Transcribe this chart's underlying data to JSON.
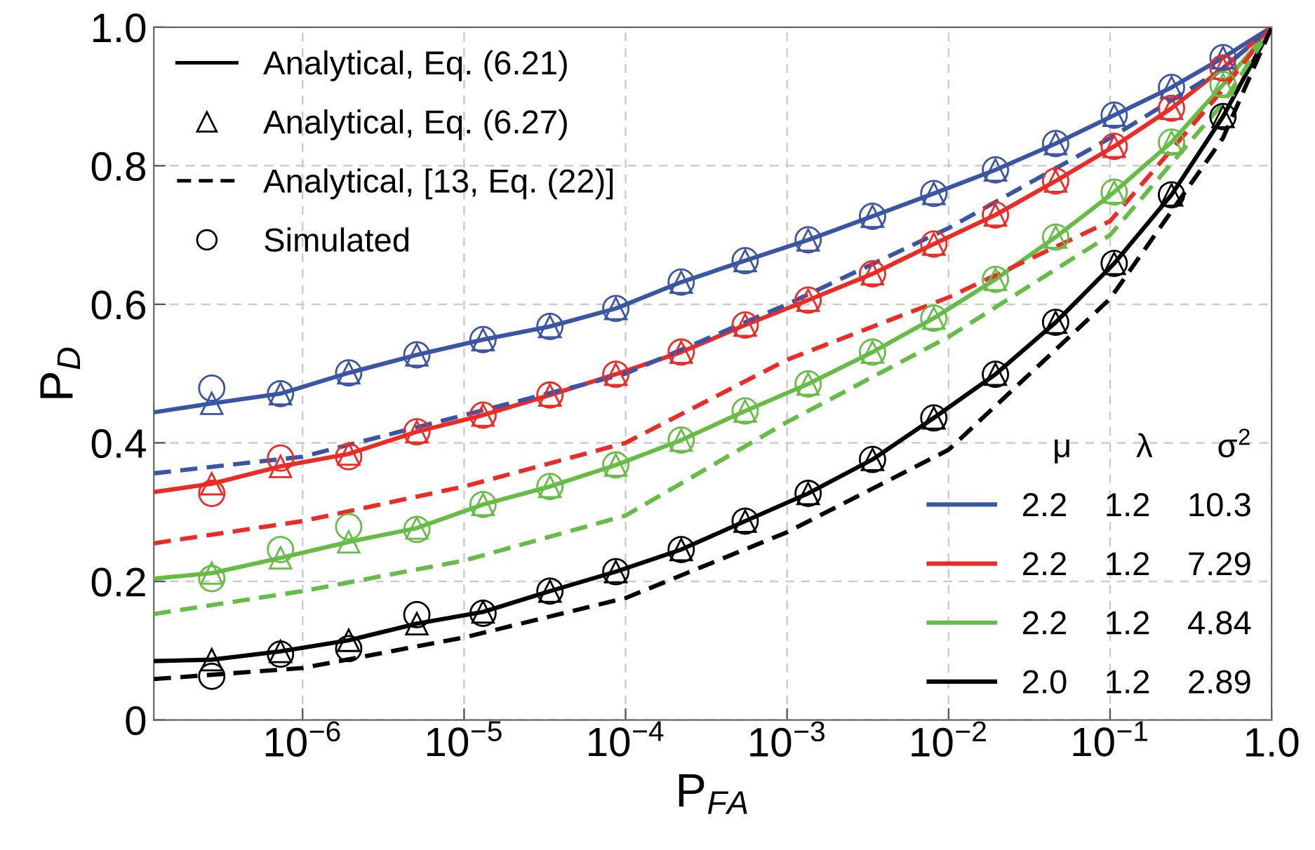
{
  "chart_data": {
    "type": "line",
    "xlabel": "P$_{FA}$",
    "ylabel": "P$_{D}$",
    "legend_title": "μ       λ       σ$^{2}$",
    "log": "x",
    "xlim": [
      1.2e-07,
      1
    ],
    "ylim": [
      0,
      1
    ],
    "xticks": [
      {
        "value": 1e-06,
        "label": "10$^{−6}$"
      },
      {
        "value": 1e-05,
        "label": "10$^{−5}$"
      },
      {
        "value": 0.0001,
        "label": "10$^{−4}$"
      },
      {
        "value": 0.001,
        "label": "10$^{−3}$"
      },
      {
        "value": 0.01,
        "label": "10$^{−2}$"
      },
      {
        "value": 0.1,
        "label": "10$^{−1}$"
      },
      {
        "value": 1,
        "label": "1.0"
      }
    ],
    "yticks": [
      0,
      0.2,
      0.4,
      0.6,
      0.8,
      {
        "value": 1,
        "label": "1.0"
      }
    ],
    "grid": true,
    "legend": "bottom right",
    "annotations": [
      "Analytical, Eq. (6.21)"
    ],
    "series": [
      {
        "line_style": "solid",
        "marker": "none",
        "name": "2.2    1.2    10.3",
        "color": "#3a55a5",
        "x": [
          1.2e-07,
          2.74e-07,
          7.3e-07,
          1.93e-06,
          5.1e-06,
          1.31e-05,
          3.4e-05,
          8.7e-05,
          0.000221,
          0.00055,
          0.00135,
          0.00338,
          0.0081,
          0.0195,
          0.046,
          0.106,
          0.24,
          0.5,
          1
        ],
        "values": [
          0.444,
          0.457,
          0.471,
          0.501,
          0.527,
          0.549,
          0.568,
          0.594,
          0.632,
          0.663,
          0.693,
          0.727,
          0.76,
          0.794,
          0.832,
          0.873,
          0.913,
          0.956,
          1.0
        ]
      },
      {
        "line_style": "solid",
        "marker": "none",
        "name": "2.2    1.2    7.29",
        "color": "#ee2a24",
        "x": [
          1.2e-07,
          2.74e-07,
          7.3e-07,
          1.93e-06,
          5.1e-06,
          1.31e-05,
          3.4e-05,
          8.7e-05,
          0.000221,
          0.00055,
          0.00135,
          0.00338,
          0.0081,
          0.0195,
          0.046,
          0.106,
          0.24,
          0.5,
          1
        ],
        "values": [
          0.329,
          0.341,
          0.366,
          0.384,
          0.416,
          0.44,
          0.469,
          0.499,
          0.531,
          0.57,
          0.606,
          0.644,
          0.687,
          0.729,
          0.778,
          0.828,
          0.883,
          0.941,
          1.0
        ]
      },
      {
        "line_style": "solid",
        "marker": "none",
        "name": "2.2    1.2    4.84",
        "color": "#66bd45",
        "x": [
          1.2e-07,
          2.74e-07,
          7.3e-07,
          1.93e-06,
          5.1e-06,
          1.31e-05,
          3.4e-05,
          8.7e-05,
          0.000221,
          0.00055,
          0.00135,
          0.00338,
          0.0081,
          0.0195,
          0.046,
          0.106,
          0.24,
          0.5,
          1
        ],
        "values": [
          0.204,
          0.212,
          0.234,
          0.257,
          0.277,
          0.311,
          0.337,
          0.368,
          0.404,
          0.446,
          0.485,
          0.531,
          0.58,
          0.636,
          0.697,
          0.762,
          0.834,
          0.917,
          1.0
        ]
      },
      {
        "line_style": "solid",
        "marker": "none",
        "name": "2.0    1.2    2.89",
        "color": "#000000",
        "x": [
          1.2e-07,
          2.74e-07,
          7.3e-07,
          1.93e-06,
          5.1e-06,
          1.31e-05,
          3.4e-05,
          8.7e-05,
          0.000221,
          0.00055,
          0.00135,
          0.00338,
          0.0081,
          0.0195,
          0.046,
          0.106,
          0.24,
          0.5,
          1
        ],
        "values": [
          0.085,
          0.087,
          0.099,
          0.115,
          0.139,
          0.156,
          0.186,
          0.214,
          0.246,
          0.287,
          0.327,
          0.376,
          0.436,
          0.499,
          0.574,
          0.659,
          0.758,
          0.871,
          1.0
        ]
      },
      {
        "type": "scatter",
        "marker": "triangle",
        "color": "#3a55a5",
        "x": [
          2.74e-07,
          7.3e-07,
          1.93e-06,
          5.1e-06,
          1.31e-05,
          3.4e-05,
          8.7e-05,
          0.000221,
          0.00055,
          0.00135,
          0.00338,
          0.0081,
          0.0195,
          0.046,
          0.106,
          0.24,
          0.5
        ],
        "values": [
          0.457,
          0.471,
          0.501,
          0.527,
          0.549,
          0.568,
          0.594,
          0.632,
          0.663,
          0.693,
          0.727,
          0.76,
          0.794,
          0.832,
          0.873,
          0.913,
          0.956
        ]
      },
      {
        "type": "scatter",
        "marker": "triangle",
        "color": "#ee2a24",
        "x": [
          2.74e-07,
          7.3e-07,
          1.93e-06,
          5.1e-06,
          1.31e-05,
          3.4e-05,
          8.7e-05,
          0.000221,
          0.00055,
          0.00135,
          0.00338,
          0.0081,
          0.0195,
          0.046,
          0.106,
          0.24,
          0.5
        ],
        "values": [
          0.341,
          0.366,
          0.384,
          0.416,
          0.44,
          0.469,
          0.499,
          0.531,
          0.57,
          0.606,
          0.644,
          0.687,
          0.729,
          0.778,
          0.828,
          0.883,
          0.941
        ]
      },
      {
        "type": "scatter",
        "marker": "triangle",
        "color": "#66bd45",
        "x": [
          2.74e-07,
          7.3e-07,
          1.93e-06,
          5.1e-06,
          1.31e-05,
          3.4e-05,
          8.7e-05,
          0.000221,
          0.00055,
          0.00135,
          0.00338,
          0.0081,
          0.0195,
          0.046,
          0.106,
          0.24,
          0.5
        ],
        "values": [
          0.212,
          0.234,
          0.257,
          0.277,
          0.311,
          0.337,
          0.368,
          0.404,
          0.446,
          0.485,
          0.531,
          0.58,
          0.636,
          0.697,
          0.762,
          0.834,
          0.917
        ]
      },
      {
        "type": "scatter",
        "marker": "triangle",
        "name": "Analytical, Eq. (6.27)",
        "color": "#000000",
        "x": [
          2.74e-07,
          7.3e-07,
          1.93e-06,
          5.1e-06,
          1.31e-05,
          3.4e-05,
          8.7e-05,
          0.000221,
          0.00055,
          0.00135,
          0.00338,
          0.0081,
          0.0195,
          0.046,
          0.106,
          0.24,
          0.5
        ],
        "values": [
          0.087,
          0.099,
          0.115,
          0.139,
          0.156,
          0.186,
          0.214,
          0.246,
          0.287,
          0.327,
          0.376,
          0.436,
          0.499,
          0.574,
          0.659,
          0.758,
          0.871
        ]
      },
      {
        "line_style": "dashed",
        "marker": "none",
        "color": "#3a55a5",
        "x": [
          1.2e-07,
          1e-06,
          1e-05,
          0.0001,
          0.001,
          0.01,
          0.1,
          0.5,
          1
        ],
        "values": [
          0.356,
          0.38,
          0.44,
          0.5,
          0.6,
          0.71,
          0.84,
          0.94,
          1.0
        ]
      },
      {
        "line_style": "dashed",
        "marker": "none",
        "color": "#ee2a24",
        "x": [
          1.2e-07,
          1e-06,
          1e-05,
          0.0001,
          0.001,
          0.01,
          0.1,
          0.5,
          1
        ],
        "values": [
          0.255,
          0.287,
          0.337,
          0.4,
          0.52,
          0.61,
          0.72,
          0.91,
          1.0
        ]
      },
      {
        "line_style": "dashed",
        "marker": "none",
        "color": "#66bd45",
        "x": [
          1.2e-07,
          1e-06,
          1e-05,
          0.0001,
          0.001,
          0.01,
          0.1,
          0.5,
          1
        ],
        "values": [
          0.153,
          0.186,
          0.23,
          0.295,
          0.43,
          0.553,
          0.7,
          0.89,
          1.0
        ]
      },
      {
        "line_style": "dashed",
        "marker": "none",
        "name": "Analytical, [13, Eq. (22)]",
        "color": "#000000",
        "x": [
          1.2e-07,
          1e-06,
          1e-05,
          0.0001,
          0.001,
          0.01,
          0.1,
          0.5,
          1
        ],
        "values": [
          0.059,
          0.075,
          0.119,
          0.176,
          0.271,
          0.39,
          0.608,
          0.84,
          1.0
        ]
      },
      {
        "type": "scatter",
        "marker": "circle",
        "color": "#3a55a5",
        "x": [
          2.74e-07,
          7.3e-07,
          1.93e-06,
          5.1e-06,
          1.31e-05,
          3.4e-05,
          8.7e-05,
          0.000221,
          0.00055,
          0.00135,
          0.00338,
          0.0081,
          0.0195,
          0.046,
          0.106,
          0.24,
          0.5
        ],
        "values": [
          0.479,
          0.471,
          0.501,
          0.527,
          0.549,
          0.568,
          0.594,
          0.632,
          0.663,
          0.693,
          0.727,
          0.76,
          0.794,
          0.832,
          0.873,
          0.913,
          0.956
        ]
      },
      {
        "type": "scatter",
        "marker": "circle",
        "color": "#ee2a24",
        "x": [
          2.74e-07,
          7.3e-07,
          1.93e-06,
          5.1e-06,
          1.31e-05,
          3.4e-05,
          8.7e-05,
          0.000221,
          0.00055,
          0.00135,
          0.00338,
          0.0081,
          0.0195,
          0.046,
          0.106,
          0.24,
          0.5
        ],
        "values": [
          0.327,
          0.378,
          0.38,
          0.416,
          0.44,
          0.469,
          0.499,
          0.531,
          0.57,
          0.606,
          0.644,
          0.687,
          0.729,
          0.778,
          0.828,
          0.883,
          0.941
        ]
      },
      {
        "type": "scatter",
        "marker": "circle",
        "color": "#66bd45",
        "x": [
          2.74e-07,
          7.3e-07,
          1.93e-06,
          5.1e-06,
          1.31e-05,
          3.4e-05,
          8.7e-05,
          0.000221,
          0.00055,
          0.00135,
          0.00338,
          0.0081,
          0.0195,
          0.046,
          0.106,
          0.24,
          0.5
        ],
        "values": [
          0.204,
          0.246,
          0.279,
          0.275,
          0.311,
          0.337,
          0.368,
          0.404,
          0.446,
          0.485,
          0.531,
          0.58,
          0.636,
          0.697,
          0.762,
          0.834,
          0.917
        ]
      },
      {
        "type": "scatter",
        "marker": "circle",
        "name": "Simulated",
        "color": "#000000",
        "x": [
          2.74e-07,
          7.3e-07,
          1.93e-06,
          5.1e-06,
          1.31e-05,
          3.4e-05,
          8.7e-05,
          0.000221,
          0.00055,
          0.00135,
          0.00338,
          0.0081,
          0.0195,
          0.046,
          0.106,
          0.24,
          0.5
        ],
        "values": [
          0.063,
          0.095,
          0.103,
          0.152,
          0.154,
          0.186,
          0.214,
          0.246,
          0.287,
          0.327,
          0.376,
          0.436,
          0.499,
          0.574,
          0.659,
          0.758,
          0.871
        ]
      }
    ]
  }
}
